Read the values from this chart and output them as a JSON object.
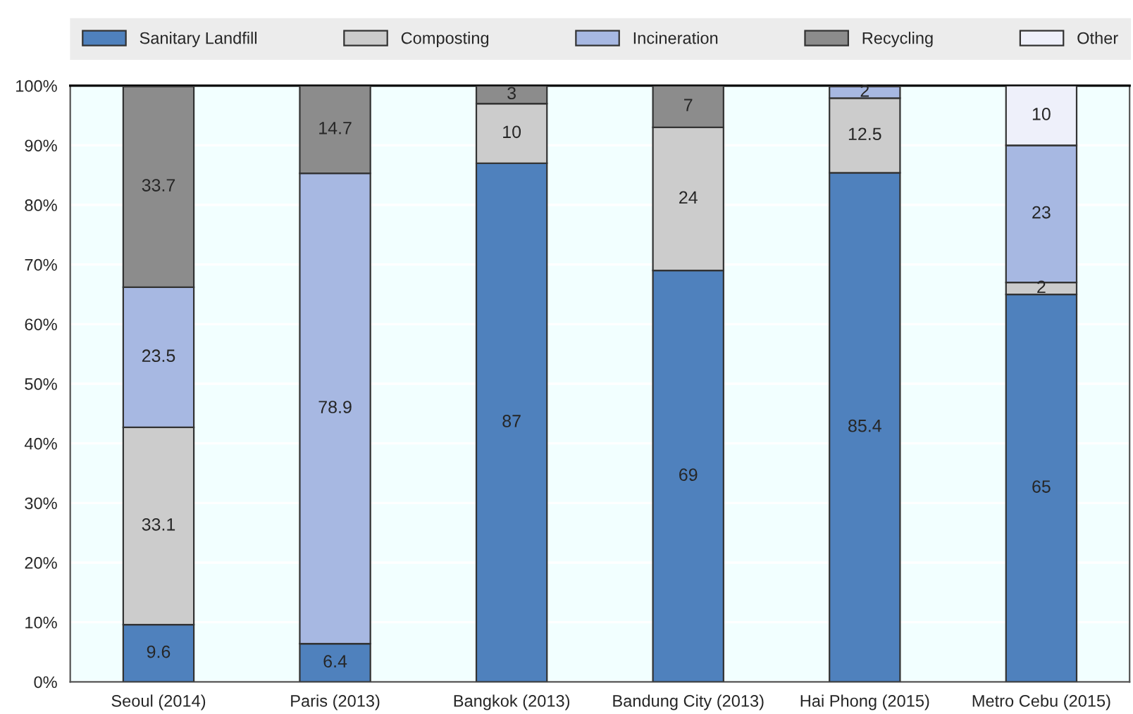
{
  "chart_data": {
    "type": "bar",
    "stacked": true,
    "categories": [
      "Seoul (2014)",
      "Paris (2013)",
      "Bangkok (2013)",
      "Bandung City (2013)",
      "Hai Phong (2015)",
      "Metro Cebu (2015)"
    ],
    "series": [
      {
        "name": "Sanitary Landfill",
        "color": "#4f81bd",
        "values": [
          9.6,
          6.4,
          87,
          69,
          85.4,
          65
        ]
      },
      {
        "name": "Composting",
        "color": "#cccccc",
        "values": [
          33.1,
          null,
          10,
          24,
          12.5,
          2
        ]
      },
      {
        "name": "Incineration",
        "color": "#a7b8e2",
        "values": [
          23.5,
          78.9,
          null,
          null,
          2,
          23
        ]
      },
      {
        "name": "Recycling",
        "color": "#8c8c8c",
        "values": [
          33.7,
          14.7,
          3,
          7,
          null,
          null
        ]
      },
      {
        "name": "Other",
        "color": "#eef0fa",
        "values": [
          null,
          null,
          null,
          null,
          null,
          10
        ]
      }
    ],
    "ylim": [
      0,
      100
    ],
    "yticks": [
      {
        "value": 0,
        "label": "0%"
      },
      {
        "value": 10,
        "label": "10%"
      },
      {
        "value": 20,
        "label": "20%"
      },
      {
        "value": 30,
        "label": "30%"
      },
      {
        "value": 40,
        "label": "40%"
      },
      {
        "value": 50,
        "label": "50%"
      },
      {
        "value": 60,
        "label": "60%"
      },
      {
        "value": 70,
        "label": "70%"
      },
      {
        "value": 80,
        "label": "80%"
      },
      {
        "value": 90,
        "label": "90%"
      },
      {
        "value": 100,
        "label": "100%"
      }
    ],
    "grid": "y",
    "legend": "top",
    "data_labels": true
  }
}
